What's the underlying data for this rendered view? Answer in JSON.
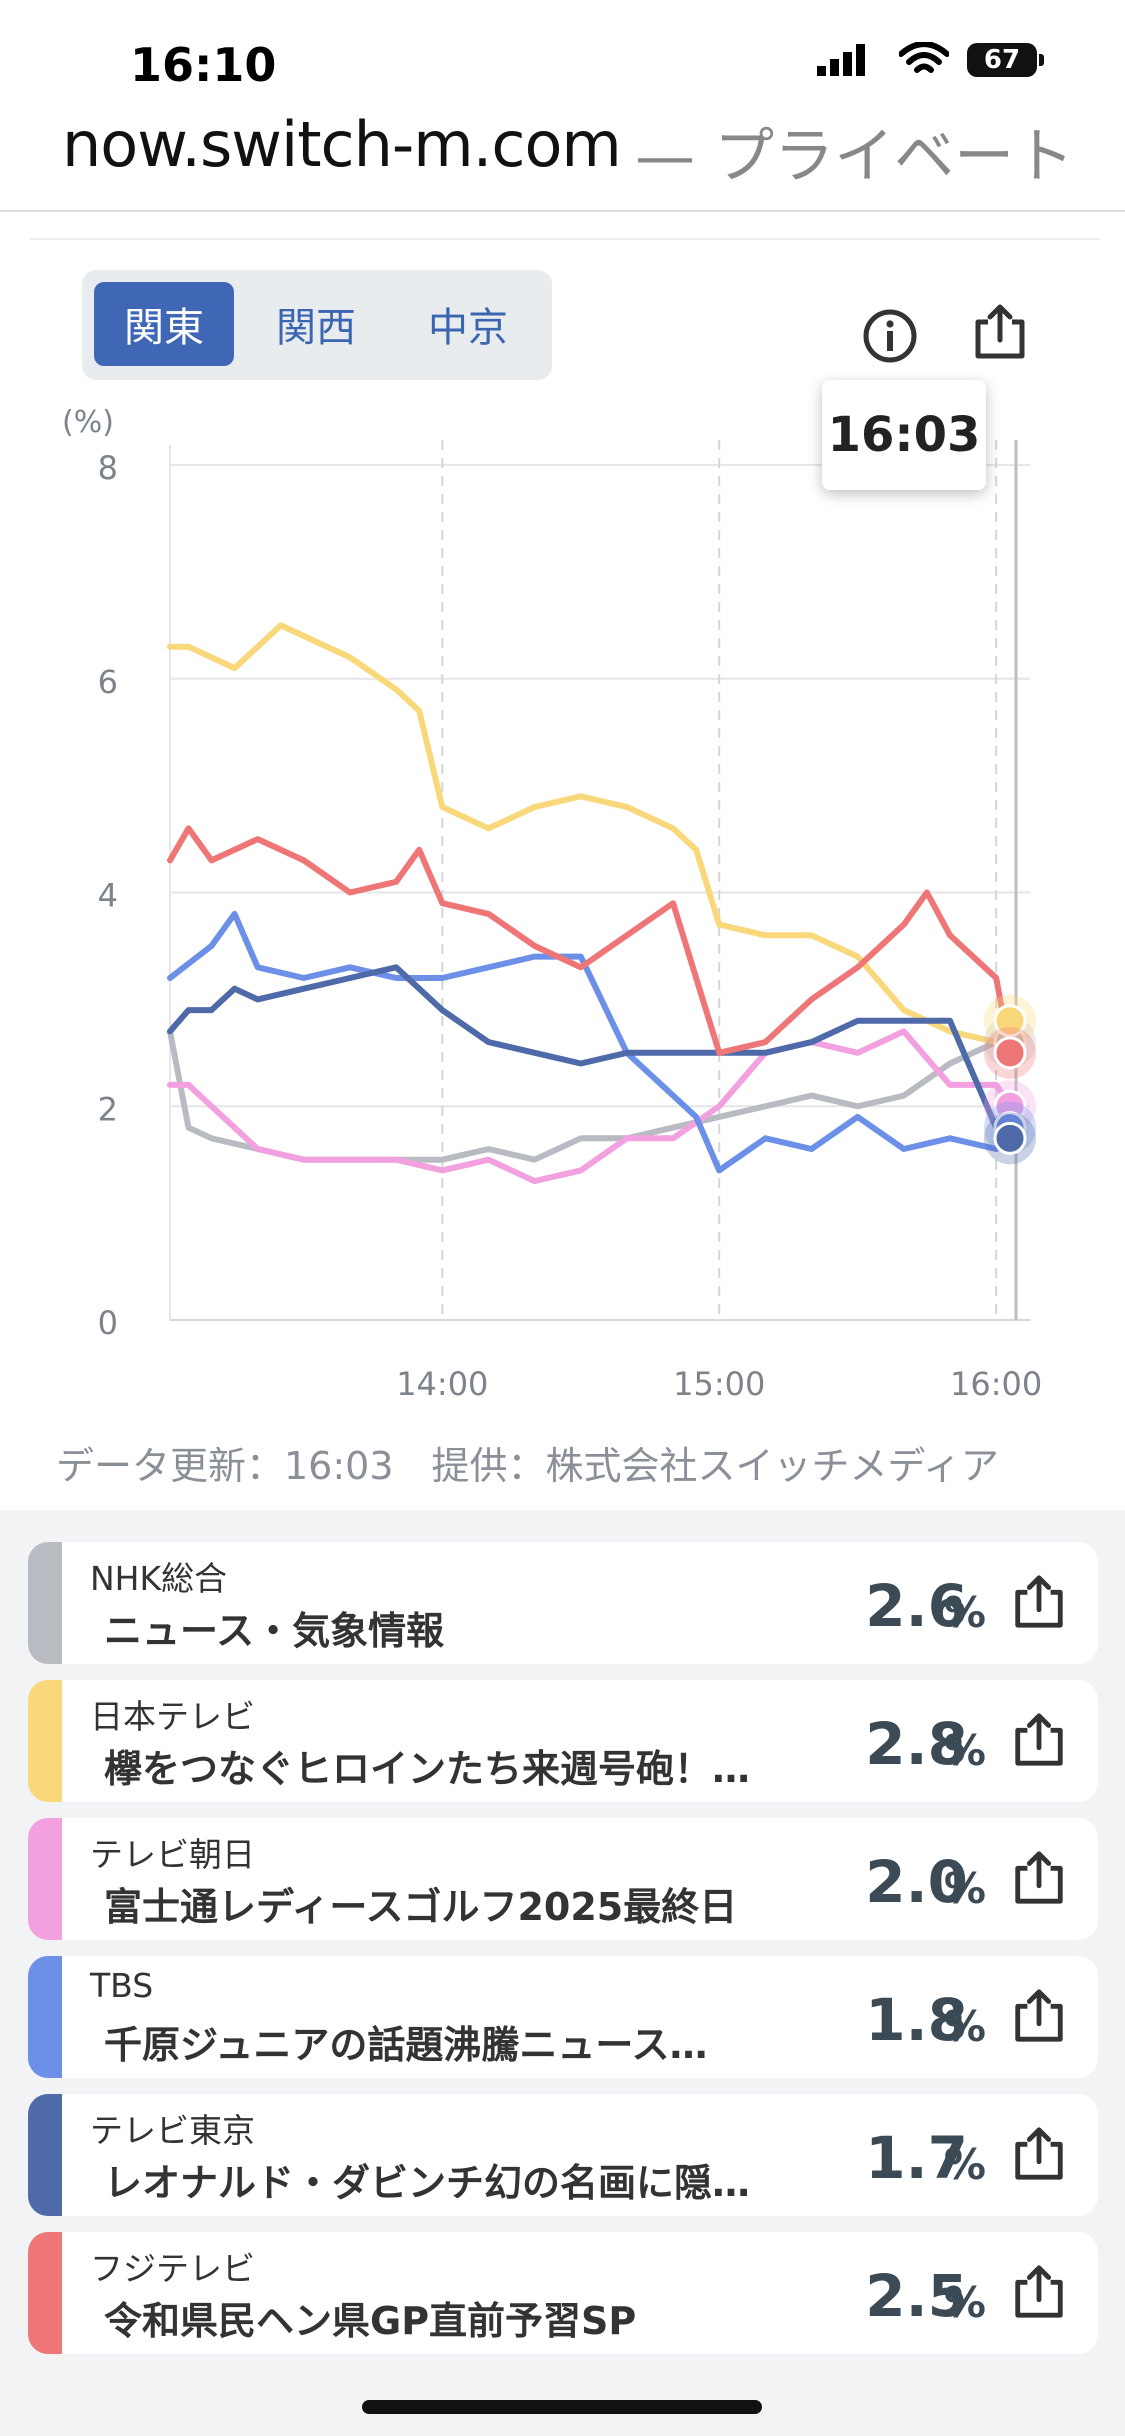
{
  "status": {
    "time": "16:10",
    "battery": "67"
  },
  "browser": {
    "host": "now.switch-m.com",
    "suffix": "— プライベート"
  },
  "regions": [
    "関東",
    "関西",
    "中京"
  ],
  "active_region": "関東",
  "tooltip_time": "16:03",
  "update_note": "データ更新：16:03　提供：株式会社スイッチメディア",
  "icons": {
    "info": "info-icon",
    "share": "share-icon"
  },
  "chart_data": {
    "type": "line",
    "ylabel": "(%)",
    "ylim": [
      0,
      8
    ],
    "yticks": [
      0,
      2,
      4,
      6,
      8
    ],
    "xticks": [
      "14:00",
      "15:00",
      "16:00"
    ],
    "xrange_minutes": [
      "13:01",
      "16:03"
    ],
    "series": [
      {
        "name": "NHK総合",
        "color": "#b8bcc2",
        "x": [
          "13:01",
          "13:05",
          "13:10",
          "13:20",
          "13:30",
          "13:40",
          "13:50",
          "14:00",
          "14:10",
          "14:20",
          "14:30",
          "14:40",
          "14:50",
          "15:00",
          "15:10",
          "15:20",
          "15:30",
          "15:40",
          "15:50",
          "16:00",
          "16:03"
        ],
        "values": [
          2.7,
          1.8,
          1.7,
          1.6,
          1.5,
          1.5,
          1.5,
          1.5,
          1.6,
          1.5,
          1.7,
          1.7,
          1.8,
          1.9,
          2.0,
          2.1,
          2.0,
          2.1,
          2.4,
          2.6,
          2.6
        ]
      },
      {
        "name": "日本テレビ",
        "color": "#f9d87c",
        "x": [
          "13:01",
          "13:05",
          "13:10",
          "13:15",
          "13:20",
          "13:25",
          "13:30",
          "13:40",
          "13:50",
          "13:55",
          "14:00",
          "14:10",
          "14:20",
          "14:30",
          "14:40",
          "14:50",
          "14:55",
          "15:00",
          "15:10",
          "15:20",
          "15:30",
          "15:40",
          "15:50",
          "16:00",
          "16:03"
        ],
        "values": [
          6.3,
          6.3,
          6.2,
          6.1,
          6.3,
          6.5,
          6.4,
          6.2,
          5.9,
          5.7,
          4.8,
          4.6,
          4.8,
          4.9,
          4.8,
          4.6,
          4.4,
          3.7,
          3.6,
          3.6,
          3.4,
          2.9,
          2.7,
          2.6,
          2.8
        ]
      },
      {
        "name": "テレビ朝日",
        "color": "#f2a0e0",
        "x": [
          "13:01",
          "13:05",
          "13:10",
          "13:20",
          "13:30",
          "13:40",
          "13:50",
          "14:00",
          "14:10",
          "14:20",
          "14:30",
          "14:40",
          "14:50",
          "15:00",
          "15:10",
          "15:20",
          "15:30",
          "15:40",
          "15:50",
          "16:00",
          "16:03"
        ],
        "values": [
          2.2,
          2.2,
          2.0,
          1.6,
          1.5,
          1.5,
          1.5,
          1.4,
          1.5,
          1.3,
          1.4,
          1.7,
          1.7,
          2.0,
          2.5,
          2.6,
          2.5,
          2.7,
          2.2,
          2.2,
          2.0
        ]
      },
      {
        "name": "TBS",
        "color": "#6c90e8",
        "x": [
          "13:01",
          "13:10",
          "13:15",
          "13:20",
          "13:30",
          "13:40",
          "13:50",
          "14:00",
          "14:10",
          "14:20",
          "14:30",
          "14:40",
          "14:50",
          "14:55",
          "15:00",
          "15:10",
          "15:20",
          "15:30",
          "15:40",
          "15:50",
          "16:00",
          "16:03"
        ],
        "values": [
          3.2,
          3.5,
          3.8,
          3.3,
          3.2,
          3.3,
          3.2,
          3.2,
          3.3,
          3.4,
          3.4,
          2.5,
          2.1,
          1.9,
          1.4,
          1.7,
          1.6,
          1.9,
          1.6,
          1.7,
          1.6,
          1.8
        ]
      },
      {
        "name": "テレビ東京",
        "color": "#4f6aa8",
        "x": [
          "13:01",
          "13:05",
          "13:10",
          "13:15",
          "13:20",
          "13:30",
          "13:40",
          "13:50",
          "14:00",
          "14:10",
          "14:20",
          "14:30",
          "14:40",
          "14:50",
          "15:00",
          "15:10",
          "15:20",
          "15:30",
          "15:40",
          "15:50",
          "16:00",
          "16:03"
        ],
        "values": [
          2.7,
          2.9,
          2.9,
          3.1,
          3.0,
          3.1,
          3.2,
          3.3,
          2.9,
          2.6,
          2.5,
          2.4,
          2.5,
          2.5,
          2.5,
          2.5,
          2.6,
          2.8,
          2.8,
          2.8,
          1.8,
          1.7
        ]
      },
      {
        "name": "フジテレビ",
        "color": "#ee7677",
        "x": [
          "13:01",
          "13:05",
          "13:10",
          "13:20",
          "13:30",
          "13:40",
          "13:50",
          "13:55",
          "14:00",
          "14:10",
          "14:20",
          "14:30",
          "14:40",
          "14:50",
          "15:00",
          "15:10",
          "15:20",
          "15:30",
          "15:40",
          "15:45",
          "15:50",
          "16:00",
          "16:03"
        ],
        "values": [
          4.3,
          4.6,
          4.3,
          4.5,
          4.3,
          4.0,
          4.1,
          4.4,
          3.9,
          3.8,
          3.5,
          3.3,
          3.6,
          3.9,
          2.5,
          2.6,
          3.0,
          3.3,
          3.7,
          4.0,
          3.6,
          3.2,
          2.5
        ]
      }
    ]
  },
  "programs": [
    {
      "channel": "NHK総合",
      "title": "ニュース・気象情報",
      "value": "2.6",
      "unit": "%",
      "color": "#b8bcc2"
    },
    {
      "channel": "日本テレビ",
      "title": "欅をつなぐヒロインたち来週号砲！…",
      "value": "2.8",
      "unit": "%",
      "color": "#f9d87c"
    },
    {
      "channel": "テレビ朝日",
      "title": "富士通レディースゴルフ2025最終日",
      "value": "2.0",
      "unit": "%",
      "color": "#f2a0e0"
    },
    {
      "channel": "TBS",
      "title": "千原ジュニアの話題沸騰ニュース…",
      "value": "1.8",
      "unit": "%",
      "color": "#6c90e8"
    },
    {
      "channel": "テレビ東京",
      "title": "レオナルド・ダビンチ幻の名画に隠…",
      "value": "1.7",
      "unit": "%",
      "color": "#4f6aa8"
    },
    {
      "channel": "フジテレビ",
      "title": "令和県民ヘン県GP直前予習SP",
      "value": "2.5",
      "unit": "%",
      "color": "#ee7677"
    }
  ]
}
